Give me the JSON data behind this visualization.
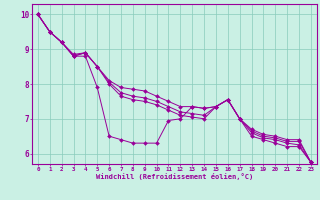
{
  "title": "",
  "xlabel": "Windchill (Refroidissement éolien,°C)",
  "ylabel": "",
  "background_color": "#caf0e4",
  "line_color": "#990099",
  "grid_color": "#88ccbb",
  "xlim": [
    -0.5,
    23.5
  ],
  "ylim": [
    5.7,
    10.3
  ],
  "yticks": [
    6,
    7,
    8,
    9,
    10
  ],
  "xticks": [
    0,
    1,
    2,
    3,
    4,
    5,
    6,
    7,
    8,
    9,
    10,
    11,
    12,
    13,
    14,
    15,
    16,
    17,
    18,
    19,
    20,
    21,
    22,
    23
  ],
  "series": [
    [
      10.0,
      9.5,
      9.2,
      8.8,
      8.8,
      7.9,
      6.5,
      6.4,
      6.3,
      6.3,
      6.3,
      6.95,
      7.0,
      7.35,
      7.3,
      7.35,
      7.55,
      7.0,
      6.5,
      6.4,
      6.3,
      6.2,
      6.2,
      5.75
    ],
    [
      10.0,
      9.5,
      9.2,
      8.8,
      8.9,
      8.5,
      8.1,
      7.9,
      7.85,
      7.8,
      7.65,
      7.5,
      7.35,
      7.35,
      7.3,
      7.35,
      7.55,
      7.0,
      6.7,
      6.55,
      6.5,
      6.4,
      6.4,
      5.75
    ],
    [
      10.0,
      9.5,
      9.2,
      8.8,
      8.9,
      8.5,
      8.05,
      7.75,
      7.65,
      7.6,
      7.5,
      7.35,
      7.2,
      7.15,
      7.1,
      7.35,
      7.55,
      7.0,
      6.65,
      6.5,
      6.45,
      6.35,
      6.35,
      5.75
    ],
    [
      10.0,
      9.5,
      9.2,
      8.85,
      8.9,
      8.5,
      8.0,
      7.65,
      7.55,
      7.5,
      7.4,
      7.25,
      7.1,
      7.05,
      7.0,
      7.35,
      7.55,
      7.0,
      6.6,
      6.45,
      6.4,
      6.3,
      6.25,
      5.75
    ]
  ]
}
